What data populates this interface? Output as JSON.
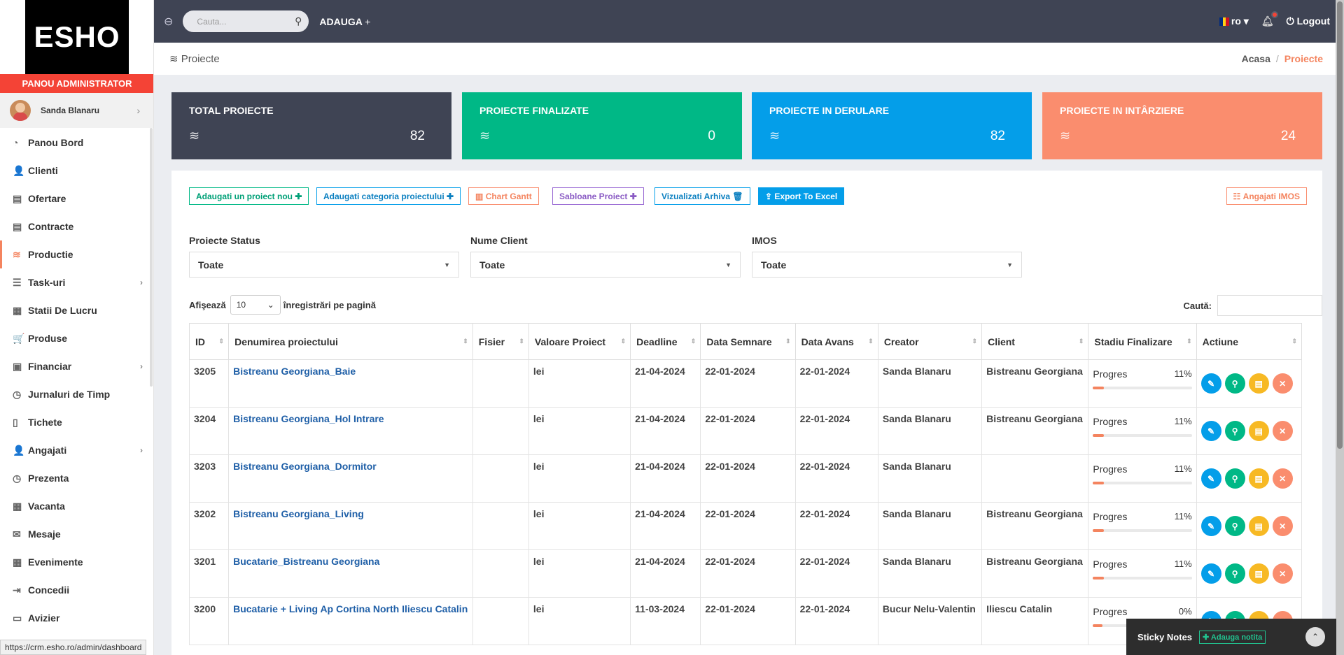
{
  "sidebar": {
    "logo": "ESHO",
    "admin_label": "PANOU ADMINISTRATOR",
    "user_name": "Sanda Blanaru",
    "items": [
      {
        "label": "Panou Bord",
        "icon": "gauge-icon",
        "glyph": "◔"
      },
      {
        "label": "Clienti",
        "icon": "user-icon",
        "glyph": "👤"
      },
      {
        "label": "Ofertare",
        "icon": "document-icon",
        "glyph": "▤"
      },
      {
        "label": "Contracte",
        "icon": "contract-icon",
        "glyph": "▤"
      },
      {
        "label": "Productie",
        "icon": "layers-icon",
        "glyph": "≋"
      },
      {
        "label": "Task-uri",
        "icon": "tasks-icon",
        "glyph": "☰"
      },
      {
        "label": "Statii De Lucru",
        "icon": "building-icon",
        "glyph": "▦"
      },
      {
        "label": "Produse",
        "icon": "cart-icon",
        "glyph": "🛒"
      },
      {
        "label": "Financiar",
        "icon": "money-icon",
        "glyph": "▣"
      },
      {
        "label": "Jurnaluri de Timp",
        "icon": "clock-icon",
        "glyph": "◷"
      },
      {
        "label": "Tichete",
        "icon": "ticket-icon",
        "glyph": "▯"
      },
      {
        "label": "Angajati",
        "icon": "users-icon",
        "glyph": "👤"
      },
      {
        "label": "Prezenta",
        "icon": "clock-icon",
        "glyph": "◷"
      },
      {
        "label": "Vacanta",
        "icon": "calendar-icon",
        "glyph": "▦"
      },
      {
        "label": "Mesaje",
        "icon": "envelope-icon",
        "glyph": "✉"
      },
      {
        "label": "Evenimente",
        "icon": "calendar-icon",
        "glyph": "▦"
      },
      {
        "label": "Concedii",
        "icon": "signout-icon",
        "glyph": "⇥"
      },
      {
        "label": "Avizier",
        "icon": "monitor-icon",
        "glyph": "▭"
      }
    ]
  },
  "topbar": {
    "search_placeholder": "Cauta...",
    "add_label": "ADAUGA",
    "lang": "ro",
    "logout": "Logout"
  },
  "breadcrumb": {
    "title": "Proiecte",
    "home": "Acasa",
    "current": "Proiecte"
  },
  "cards": [
    {
      "label": "TOTAL PROIECTE",
      "value": "82",
      "color": "#3f4454"
    },
    {
      "label": "PROIECTE FINALIZATE",
      "value": "0",
      "color": "#00b886"
    },
    {
      "label": "PROIECTE IN DERULARE",
      "value": "82",
      "color": "#049ee9"
    },
    {
      "label": "PROIECTE IN INTÂRZIERE",
      "value": "24",
      "color": "#fa8d6e"
    }
  ],
  "buttons": {
    "new_project": "Adaugati un proiect nou",
    "category": "Adaugati categoria proiectului",
    "gantt": "Chart Gantt",
    "templates": "Sabloane Proiect",
    "archive": "Vizualizati Arhiva",
    "export": "Export To Excel",
    "imos": "Angajati IMOS"
  },
  "filters": [
    {
      "label": "Proiecte Status",
      "value": "Toate"
    },
    {
      "label": "Nume Client",
      "value": "Toate"
    },
    {
      "label": "IMOS",
      "value": "Toate"
    }
  ],
  "table_controls": {
    "show": "Afişează",
    "page_size": "10",
    "per_page": "înregistrări pe pagină",
    "search": "Caută:"
  },
  "columns": [
    "ID",
    "Denumirea proiectului",
    "Fisier",
    "Valoare Proiect",
    "Deadline",
    "Data Semnare",
    "Data Avans",
    "Creator",
    "Client",
    "Stadiu Finalizare",
    "Actiune"
  ],
  "rows": [
    {
      "id": "3205",
      "name": "Bistreanu Georgiana_Baie",
      "file": "",
      "value": "lei",
      "deadline": "21-04-2024",
      "signed": "22-01-2024",
      "advance": "22-01-2024",
      "creator": "Sanda Blanaru",
      "client": "Bistreanu Georgiana",
      "progress_label": "Progres",
      "progress": "11%",
      "progress_frac": 0.11
    },
    {
      "id": "3204",
      "name": "Bistreanu Georgiana_Hol Intrare",
      "file": "",
      "value": "lei",
      "deadline": "21-04-2024",
      "signed": "22-01-2024",
      "advance": "22-01-2024",
      "creator": "Sanda Blanaru",
      "client": "Bistreanu Georgiana",
      "progress_label": "Progres",
      "progress": "11%",
      "progress_frac": 0.11
    },
    {
      "id": "3203",
      "name": "Bistreanu Georgiana_Dormitor",
      "file": "",
      "value": "lei",
      "deadline": "21-04-2024",
      "signed": "22-01-2024",
      "advance": "22-01-2024",
      "creator": "Sanda Blanaru",
      "client": "",
      "progress_label": "Progres",
      "progress": "11%",
      "progress_frac": 0.11
    },
    {
      "id": "3202",
      "name": "Bistreanu Georgiana_Living",
      "file": "",
      "value": "lei",
      "deadline": "21-04-2024",
      "signed": "22-01-2024",
      "advance": "22-01-2024",
      "creator": "Sanda Blanaru",
      "client": "Bistreanu Georgiana",
      "progress_label": "Progres",
      "progress": "11%",
      "progress_frac": 0.11
    },
    {
      "id": "3201",
      "name": "Bucatarie_Bistreanu Georgiana",
      "file": "",
      "value": "lei",
      "deadline": "21-04-2024",
      "signed": "22-01-2024",
      "advance": "22-01-2024",
      "creator": "Sanda Blanaru",
      "client": "Bistreanu Georgiana",
      "progress_label": "Progres",
      "progress": "11%",
      "progress_frac": 0.11
    },
    {
      "id": "3200",
      "name": "Bucatarie + Living Ap Cortina North Iliescu Catalin",
      "file": "",
      "value": "lei",
      "deadline": "11-03-2024",
      "signed": "22-01-2024",
      "advance": "22-01-2024",
      "creator": "Bucur Nelu-Valentin",
      "client": "Iliescu Catalin",
      "progress_label": "Progres",
      "progress": "0%",
      "progress_frac": 0
    }
  ],
  "status_url": "https://crm.esho.ro/admin/dashboard",
  "sticky": {
    "title": "Sticky Notes",
    "add": "Adauga notita"
  }
}
